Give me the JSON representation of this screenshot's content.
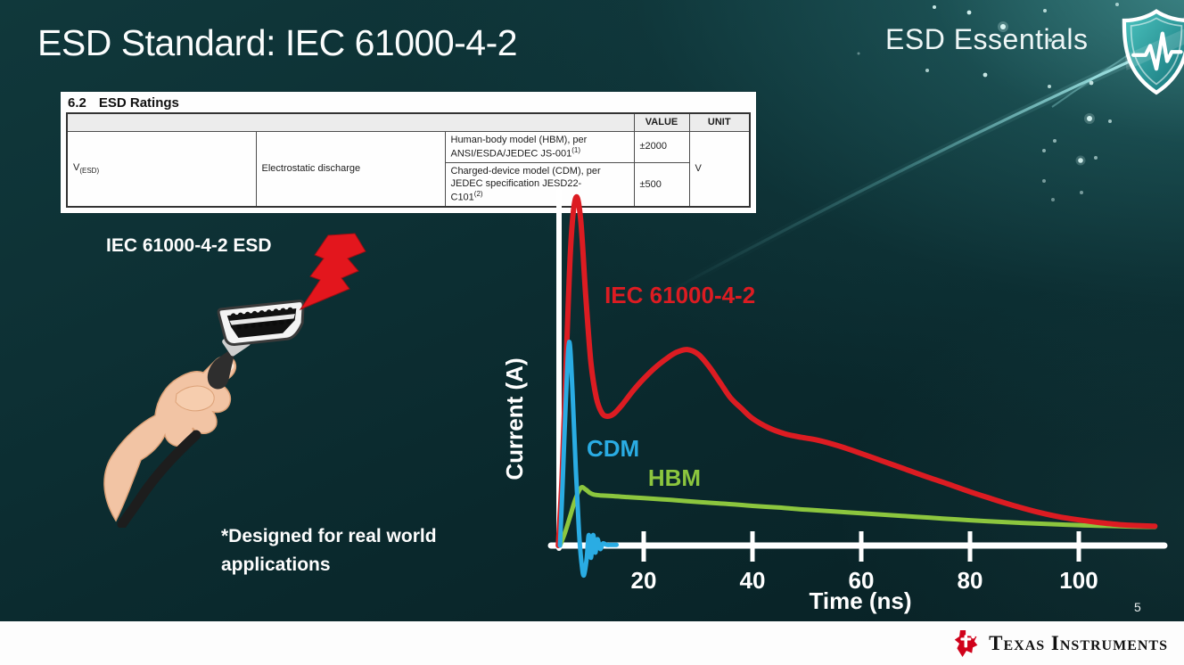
{
  "slide": {
    "title": "ESD Standard: IEC 61000-4-2",
    "page_number": "5"
  },
  "brand": {
    "series_title": "ESD Essentials",
    "shield_icon": "shield-heartbeat-icon",
    "logo_icon": "ti-texas-logo-icon",
    "logo_text": "Texas Instruments"
  },
  "ratings": {
    "section_number": "6.2",
    "section_title": "ESD Ratings",
    "table": {
      "value_header": "VALUE",
      "unit_header": "UNIT",
      "param_symbol": {
        "base": "V",
        "sub": "(ESD)"
      },
      "param_name": "Electrostatic discharge",
      "rows": [
        {
          "lines": [
            "Human-body model (HBM), per ANSI/ESDA/JEDEC JS-001"
          ],
          "footnote": "(1)",
          "value": "±2000"
        },
        {
          "lines": [
            "Charged-device model (CDM), per JEDEC specification JESD22-",
            "C101"
          ],
          "footnote": "(2)",
          "value": "±500"
        }
      ],
      "unit": "V"
    }
  },
  "illustration": {
    "label": "IEC 61000-4-2 ESD",
    "note": "*Designed for real world applications",
    "icons": [
      "lightning-bolt-icon",
      "hdmi-connector-icon",
      "hand-holding-cable-icon"
    ]
  },
  "chart_data": {
    "type": "line",
    "title": "",
    "xlabel": "Time (ns)",
    "ylabel": "Current (A)",
    "xlim": [
      0,
      118
    ],
    "ylim": [
      -0.1,
      1.05
    ],
    "x_ticks": [
      20,
      40,
      60,
      80,
      100
    ],
    "y_ticks": [],
    "grid": false,
    "legend_position": "inline-labels",
    "series": [
      {
        "name": "IEC 61000-4-2",
        "color": "#dc1c22",
        "label_pos": [
          12.8,
          0.69
        ],
        "points": [
          [
            4.3,
            0
          ],
          [
            5.0,
            0.2
          ],
          [
            5.8,
            0.55
          ],
          [
            6.6,
            0.86
          ],
          [
            7.5,
            0.99
          ],
          [
            8.4,
            0.93
          ],
          [
            9.3,
            0.72
          ],
          [
            10.3,
            0.52
          ],
          [
            11.3,
            0.42
          ],
          [
            12.3,
            0.378
          ],
          [
            13.3,
            0.368
          ],
          [
            14.5,
            0.375
          ],
          [
            16,
            0.4
          ],
          [
            18,
            0.44
          ],
          [
            20,
            0.475
          ],
          [
            22,
            0.505
          ],
          [
            24,
            0.53
          ],
          [
            26,
            0.55
          ],
          [
            28,
            0.558
          ],
          [
            30,
            0.545
          ],
          [
            32,
            0.51
          ],
          [
            34,
            0.465
          ],
          [
            36,
            0.42
          ],
          [
            38,
            0.39
          ],
          [
            40,
            0.362
          ],
          [
            43,
            0.335
          ],
          [
            46,
            0.318
          ],
          [
            49,
            0.308
          ],
          [
            52,
            0.3
          ],
          [
            56,
            0.283
          ],
          [
            60,
            0.262
          ],
          [
            64,
            0.24
          ],
          [
            68,
            0.218
          ],
          [
            72,
            0.196
          ],
          [
            76,
            0.175
          ],
          [
            80,
            0.153
          ],
          [
            84,
            0.133
          ],
          [
            88,
            0.114
          ],
          [
            92,
            0.097
          ],
          [
            96,
            0.083
          ],
          [
            100,
            0.073
          ],
          [
            104,
            0.065
          ],
          [
            108,
            0.059
          ],
          [
            112,
            0.056
          ],
          [
            114,
            0.055
          ]
        ]
      },
      {
        "name": "CDM",
        "color": "#2aace3",
        "label_pos": [
          9.5,
          0.254
        ],
        "points": [
          [
            4.6,
            0
          ],
          [
            5.1,
            0.18
          ],
          [
            5.7,
            0.42
          ],
          [
            6.3,
            0.58
          ],
          [
            6.9,
            0.44
          ],
          [
            7.5,
            0.22
          ],
          [
            8.1,
            0.04
          ],
          [
            8.6,
            -0.055
          ],
          [
            9.0,
            -0.085
          ],
          [
            9.5,
            -0.04
          ],
          [
            9.9,
            0.03
          ],
          [
            10.3,
            -0.035
          ],
          [
            10.7,
            0.03
          ],
          [
            11.1,
            -0.02
          ],
          [
            11.5,
            0.018
          ],
          [
            12.0,
            -0.01
          ],
          [
            12.5,
            0.006
          ],
          [
            13.2,
            0.002
          ],
          [
            14.0,
            0.002
          ],
          [
            15.0,
            0.002
          ]
        ]
      },
      {
        "name": "HBM",
        "color": "#8cc63e",
        "label_pos": [
          20.8,
          0.17
        ],
        "points": [
          [
            4.6,
            0
          ],
          [
            5.5,
            0.035
          ],
          [
            6.5,
            0.085
          ],
          [
            7.5,
            0.135
          ],
          [
            8.5,
            0.165
          ],
          [
            9.3,
            0.16
          ],
          [
            10.1,
            0.15
          ],
          [
            10.9,
            0.145
          ],
          [
            12,
            0.143
          ],
          [
            14,
            0.141
          ],
          [
            17,
            0.138
          ],
          [
            20,
            0.135
          ],
          [
            25,
            0.13
          ],
          [
            30,
            0.124
          ],
          [
            35,
            0.119
          ],
          [
            40,
            0.113
          ],
          [
            45,
            0.108
          ],
          [
            50,
            0.102
          ],
          [
            55,
            0.097
          ],
          [
            60,
            0.092
          ],
          [
            65,
            0.087
          ],
          [
            70,
            0.082
          ],
          [
            75,
            0.077
          ],
          [
            80,
            0.072
          ],
          [
            85,
            0.068
          ],
          [
            90,
            0.064
          ],
          [
            95,
            0.061
          ],
          [
            100,
            0.058
          ],
          [
            105,
            0.056
          ],
          [
            110,
            0.054
          ],
          [
            114,
            0.053
          ]
        ]
      }
    ]
  }
}
